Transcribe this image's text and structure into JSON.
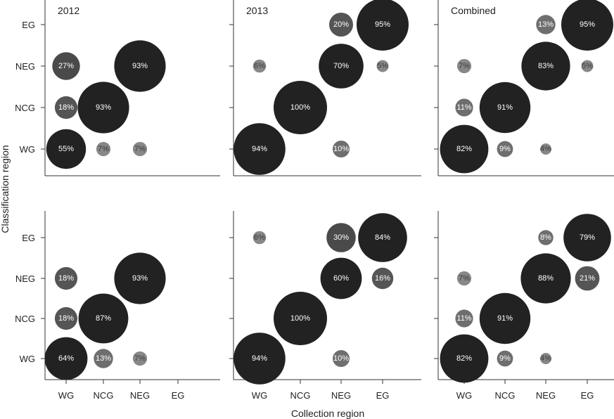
{
  "figure": {
    "xlabel": "Collection region",
    "ylabel": "Classification region"
  },
  "chart_data": [
    {
      "type": "bubble",
      "title": "2012",
      "x_categories": [
        "WG",
        "NCG",
        "NEG",
        "EG"
      ],
      "y_categories": [
        "WG",
        "NCG",
        "NEG",
        "EG"
      ],
      "points": [
        {
          "x": "WG",
          "y": "WG",
          "value": 55,
          "label": "55%"
        },
        {
          "x": "WG",
          "y": "NCG",
          "value": 18,
          "label": "18%"
        },
        {
          "x": "WG",
          "y": "NEG",
          "value": 27,
          "label": "27%"
        },
        {
          "x": "NCG",
          "y": "WG",
          "value": 7,
          "label": "7%"
        },
        {
          "x": "NCG",
          "y": "NCG",
          "value": 93,
          "label": "93%"
        },
        {
          "x": "NEG",
          "y": "WG",
          "value": 7,
          "label": "7%"
        },
        {
          "x": "NEG",
          "y": "NEG",
          "value": 93,
          "label": "93%"
        }
      ]
    },
    {
      "type": "bubble",
      "title": "2013",
      "x_categories": [
        "WG",
        "NCG",
        "NEG",
        "EG"
      ],
      "y_categories": [
        "WG",
        "NCG",
        "NEG",
        "EG"
      ],
      "points": [
        {
          "x": "WG",
          "y": "WG",
          "value": 94,
          "label": "94%"
        },
        {
          "x": "WG",
          "y": "NEG",
          "value": 6,
          "label": "6%"
        },
        {
          "x": "NCG",
          "y": "NCG",
          "value": 100,
          "label": "100%"
        },
        {
          "x": "NEG",
          "y": "WG",
          "value": 10,
          "label": "10%"
        },
        {
          "x": "NEG",
          "y": "NEG",
          "value": 70,
          "label": "70%"
        },
        {
          "x": "NEG",
          "y": "EG",
          "value": 20,
          "label": "20%"
        },
        {
          "x": "EG",
          "y": "NEG",
          "value": 5,
          "label": "5%"
        },
        {
          "x": "EG",
          "y": "EG",
          "value": 95,
          "label": "95%"
        }
      ]
    },
    {
      "type": "bubble",
      "title": "Combined",
      "x_categories": [
        "WG",
        "NCG",
        "NEG",
        "EG"
      ],
      "y_categories": [
        "WG",
        "NCG",
        "NEG",
        "EG"
      ],
      "points": [
        {
          "x": "WG",
          "y": "WG",
          "value": 82,
          "label": "82%"
        },
        {
          "x": "WG",
          "y": "NCG",
          "value": 11,
          "label": "11%"
        },
        {
          "x": "WG",
          "y": "NEG",
          "value": 7,
          "label": "7%"
        },
        {
          "x": "NCG",
          "y": "WG",
          "value": 9,
          "label": "9%"
        },
        {
          "x": "NCG",
          "y": "NCG",
          "value": 91,
          "label": "91%"
        },
        {
          "x": "NEG",
          "y": "WG",
          "value": 4,
          "label": "4%"
        },
        {
          "x": "NEG",
          "y": "NEG",
          "value": 83,
          "label": "83%"
        },
        {
          "x": "NEG",
          "y": "EG",
          "value": 13,
          "label": "13%"
        },
        {
          "x": "EG",
          "y": "NEG",
          "value": 5,
          "label": "5%"
        },
        {
          "x": "EG",
          "y": "EG",
          "value": 95,
          "label": "95%"
        }
      ]
    },
    {
      "type": "bubble",
      "title": "",
      "x_categories": [
        "WG",
        "NCG",
        "NEG",
        "EG"
      ],
      "y_categories": [
        "WG",
        "NCG",
        "NEG",
        "EG"
      ],
      "points": [
        {
          "x": "WG",
          "y": "WG",
          "value": 64,
          "label": "64%"
        },
        {
          "x": "WG",
          "y": "NCG",
          "value": 18,
          "label": "18%"
        },
        {
          "x": "WG",
          "y": "NEG",
          "value": 18,
          "label": "18%"
        },
        {
          "x": "NCG",
          "y": "WG",
          "value": 13,
          "label": "13%"
        },
        {
          "x": "NCG",
          "y": "NCG",
          "value": 87,
          "label": "87%"
        },
        {
          "x": "NEG",
          "y": "WG",
          "value": 7,
          "label": "7%"
        },
        {
          "x": "NEG",
          "y": "NEG",
          "value": 93,
          "label": "93%"
        }
      ]
    },
    {
      "type": "bubble",
      "title": "",
      "x_categories": [
        "WG",
        "NCG",
        "NEG",
        "EG"
      ],
      "y_categories": [
        "WG",
        "NCG",
        "NEG",
        "EG"
      ],
      "points": [
        {
          "x": "WG",
          "y": "WG",
          "value": 94,
          "label": "94%"
        },
        {
          "x": "WG",
          "y": "EG",
          "value": 6,
          "label": "6%"
        },
        {
          "x": "NCG",
          "y": "NCG",
          "value": 100,
          "label": "100%"
        },
        {
          "x": "NEG",
          "y": "WG",
          "value": 10,
          "label": "10%"
        },
        {
          "x": "NEG",
          "y": "NEG",
          "value": 60,
          "label": "60%"
        },
        {
          "x": "NEG",
          "y": "EG",
          "value": 30,
          "label": "30%"
        },
        {
          "x": "EG",
          "y": "NEG",
          "value": 16,
          "label": "16%"
        },
        {
          "x": "EG",
          "y": "EG",
          "value": 84,
          "label": "84%"
        }
      ]
    },
    {
      "type": "bubble",
      "title": "",
      "x_categories": [
        "WG",
        "NCG",
        "NEG",
        "EG"
      ],
      "y_categories": [
        "WG",
        "NCG",
        "NEG",
        "EG"
      ],
      "points": [
        {
          "x": "WG",
          "y": "WG",
          "value": 82,
          "label": "82%"
        },
        {
          "x": "WG",
          "y": "NCG",
          "value": 11,
          "label": "11%"
        },
        {
          "x": "WG",
          "y": "NEG",
          "value": 7,
          "label": "7%"
        },
        {
          "x": "NCG",
          "y": "WG",
          "value": 9,
          "label": "9%"
        },
        {
          "x": "NCG",
          "y": "NCG",
          "value": 91,
          "label": "91%"
        },
        {
          "x": "NEG",
          "y": "WG",
          "value": 4,
          "label": "4%"
        },
        {
          "x": "NEG",
          "y": "NEG",
          "value": 88,
          "label": "88%"
        },
        {
          "x": "NEG",
          "y": "EG",
          "value": 8,
          "label": "8%"
        },
        {
          "x": "EG",
          "y": "NEG",
          "value": 21,
          "label": "21%"
        },
        {
          "x": "EG",
          "y": "EG",
          "value": 79,
          "label": "79%"
        }
      ]
    }
  ]
}
